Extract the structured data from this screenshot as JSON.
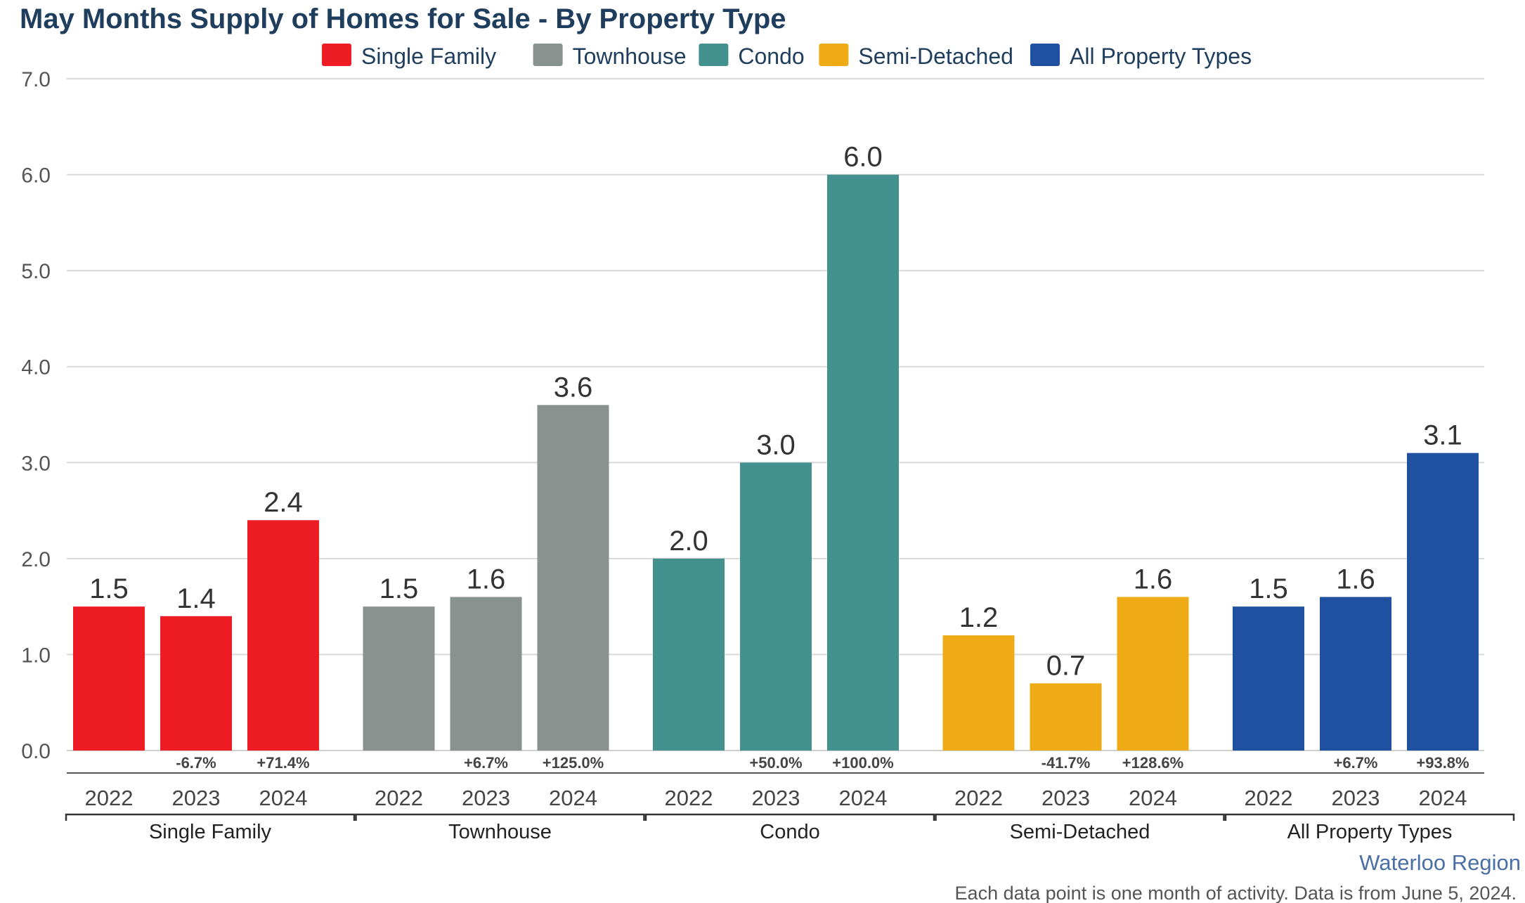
{
  "chart_data": {
    "type": "bar",
    "title": "May Months Supply of Homes for Sale - By Property Type",
    "ylim": [
      0,
      7
    ],
    "yticks": [
      "0.0",
      "1.0",
      "2.0",
      "3.0",
      "4.0",
      "5.0",
      "6.0",
      "7.0"
    ],
    "grid": true,
    "legend_position": "top",
    "legend": [
      {
        "name": "Single Family",
        "color": "#ee1c25"
      },
      {
        "name": "Townhouse",
        "color": "#8a9290"
      },
      {
        "name": "Condo",
        "color": "#42918f"
      },
      {
        "name": "Semi-Detached",
        "color": "#efab16"
      },
      {
        "name": "All Property Types",
        "color": "#1f51a0"
      }
    ],
    "groups": [
      {
        "name": "Single Family",
        "color": "#ee1c25",
        "years": [
          "2022",
          "2023",
          "2024"
        ],
        "values": [
          1.5,
          1.4,
          2.4
        ],
        "value_labels": [
          "1.5",
          "1.4",
          "2.4"
        ],
        "changes": [
          "",
          "-6.7%",
          "+71.4%"
        ]
      },
      {
        "name": "Townhouse",
        "color": "#8a9290",
        "years": [
          "2022",
          "2023",
          "2024"
        ],
        "values": [
          1.5,
          1.6,
          3.6
        ],
        "value_labels": [
          "1.5",
          "1.6",
          "3.6"
        ],
        "changes": [
          "",
          "+6.7%",
          "+125.0%"
        ]
      },
      {
        "name": "Condo",
        "color": "#42918f",
        "years": [
          "2022",
          "2023",
          "2024"
        ],
        "values": [
          2.0,
          3.0,
          6.0
        ],
        "value_labels": [
          "2.0",
          "3.0",
          "6.0"
        ],
        "changes": [
          "",
          "+50.0%",
          "+100.0%"
        ]
      },
      {
        "name": "Semi-Detached",
        "color": "#efab16",
        "years": [
          "2022",
          "2023",
          "2024"
        ],
        "values": [
          1.2,
          0.7,
          1.6
        ],
        "value_labels": [
          "1.2",
          "0.7",
          "1.6"
        ],
        "changes": [
          "",
          "-41.7%",
          "+128.6%"
        ]
      },
      {
        "name": "All Property Types",
        "color": "#1f51a0",
        "years": [
          "2022",
          "2023",
          "2024"
        ],
        "values": [
          1.5,
          1.6,
          3.1
        ],
        "value_labels": [
          "1.5",
          "1.6",
          "3.1"
        ],
        "changes": [
          "",
          "+6.7%",
          "+93.8%"
        ]
      }
    ],
    "region": "Waterloo Region",
    "footnote": "Each data point is one month of activity. Data is from June 5, 2024."
  }
}
